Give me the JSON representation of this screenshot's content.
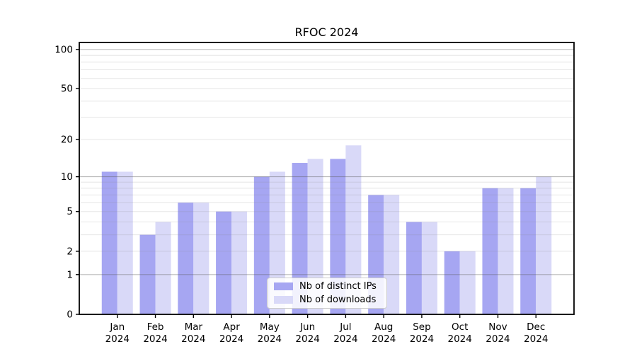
{
  "chart_data": {
    "type": "bar",
    "title": "RFOC 2024",
    "categories": [
      "Jan 2024",
      "Feb 2024",
      "Mar 2024",
      "Apr 2024",
      "May 2024",
      "Jun 2024",
      "Jul 2024",
      "Aug 2024",
      "Sep 2024",
      "Oct 2024",
      "Nov 2024",
      "Dec 2024"
    ],
    "series": [
      {
        "name": "Nb of distinct IPs",
        "color": "#a6a6f2",
        "values": [
          11,
          3,
          6,
          5,
          10,
          13,
          14,
          7,
          4,
          2,
          8,
          8
        ]
      },
      {
        "name": "Nb of downloads",
        "color": "#d9d9f8",
        "values": [
          11,
          4,
          6,
          5,
          11,
          14,
          18,
          7,
          4,
          2,
          8,
          10
        ]
      }
    ],
    "yscale": "log1p",
    "ylim": [
      0,
      113
    ],
    "yticks": [
      0,
      1,
      2,
      5,
      10,
      20,
      50,
      100
    ],
    "major_gridlines": [
      1,
      10,
      100
    ],
    "minor_gridlines": [
      2,
      3,
      4,
      5,
      6,
      7,
      8,
      9,
      20,
      30,
      40,
      50,
      60,
      70,
      80,
      90
    ],
    "grid": "on",
    "legend_position": "lower center",
    "xlabel": "",
    "ylabel": ""
  }
}
